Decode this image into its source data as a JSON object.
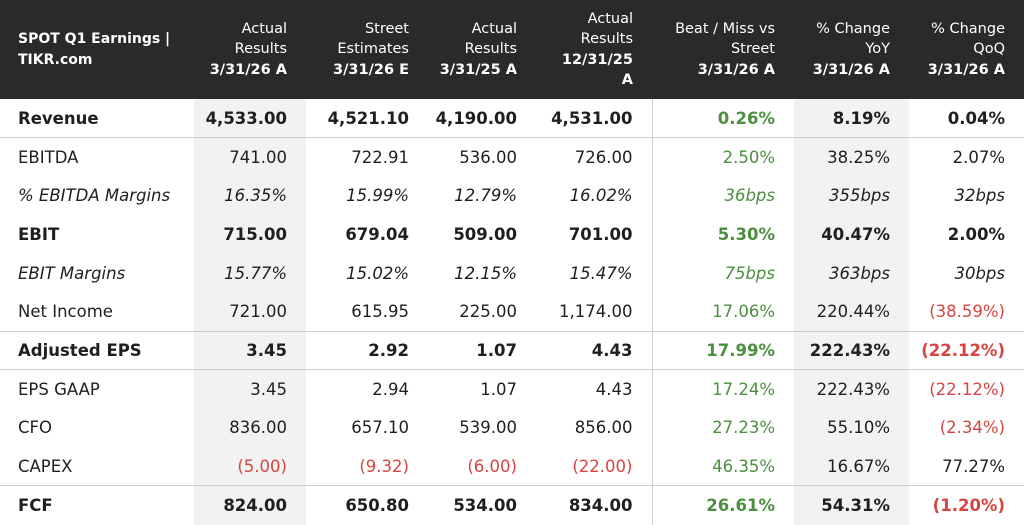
{
  "header": {
    "title_line1": "SPOT Q1 Earnings |",
    "title_line2": "TIKR.com",
    "columns": [
      {
        "line1": "Actual",
        "line2": "Results",
        "line3": "3/31/26 A"
      },
      {
        "line1": "Street",
        "line2": "Estimates",
        "line3": "3/31/26 E"
      },
      {
        "line1": "Actual",
        "line2": "Results",
        "line3": "3/31/25 A"
      },
      {
        "line1": "Actual",
        "line2": "Results",
        "line3": "12/31/25",
        "line4": "A"
      },
      {
        "line1": "Beat / Miss vs",
        "line2": "Street",
        "line3": "3/31/26 A"
      },
      {
        "line1": "% Change",
        "line2": "YoY",
        "line3": "3/31/26 A"
      },
      {
        "line1": "% Change",
        "line2": "QoQ",
        "line3": "3/31/26 A"
      }
    ]
  },
  "rows": [
    {
      "label": "Revenue",
      "cells": [
        "4,533.00",
        "4,521.10",
        "4,190.00",
        "4,531.00",
        "0.26%",
        "8.19%",
        "0.04%"
      ]
    },
    {
      "label": "EBITDA",
      "cells": [
        "741.00",
        "722.91",
        "536.00",
        "726.00",
        "2.50%",
        "38.25%",
        "2.07%"
      ]
    },
    {
      "label": "% EBITDA Margins",
      "cells": [
        "16.35%",
        "15.99%",
        "12.79%",
        "16.02%",
        "36bps",
        "355bps",
        "32bps"
      ]
    },
    {
      "label": "EBIT",
      "cells": [
        "715.00",
        "679.04",
        "509.00",
        "701.00",
        "5.30%",
        "40.47%",
        "2.00%"
      ]
    },
    {
      "label": "EBIT Margins",
      "cells": [
        "15.77%",
        "15.02%",
        "12.15%",
        "15.47%",
        "75bps",
        "363bps",
        "30bps"
      ]
    },
    {
      "label": "Net Income",
      "cells": [
        "721.00",
        "615.95",
        "225.00",
        "1,174.00",
        "17.06%",
        "220.44%",
        "(38.59%)"
      ]
    },
    {
      "label": "Adjusted EPS",
      "cells": [
        "3.45",
        "2.92",
        "1.07",
        "4.43",
        "17.99%",
        "222.43%",
        "(22.12%)"
      ]
    },
    {
      "label": "EPS GAAP",
      "cells": [
        "3.45",
        "2.94",
        "1.07",
        "4.43",
        "17.24%",
        "222.43%",
        "(22.12%)"
      ]
    },
    {
      "label": "CFO",
      "cells": [
        "836.00",
        "657.10",
        "539.00",
        "856.00",
        "27.23%",
        "55.10%",
        "(2.34%)"
      ]
    },
    {
      "label": "CAPEX",
      "cells": [
        "(5.00)",
        "(9.32)",
        "(6.00)",
        "(22.00)",
        "46.35%",
        "16.67%",
        "77.27%"
      ]
    },
    {
      "label": "FCF",
      "cells": [
        "824.00",
        "650.80",
        "534.00",
        "834.00",
        "26.61%",
        "54.31%",
        "(1.20%)"
      ]
    }
  ],
  "colors": {
    "header_bg": "#2a2a2a",
    "beat_green": "#4c8f3e",
    "negative_red": "#d64541",
    "shade": "#f2f2f2"
  }
}
